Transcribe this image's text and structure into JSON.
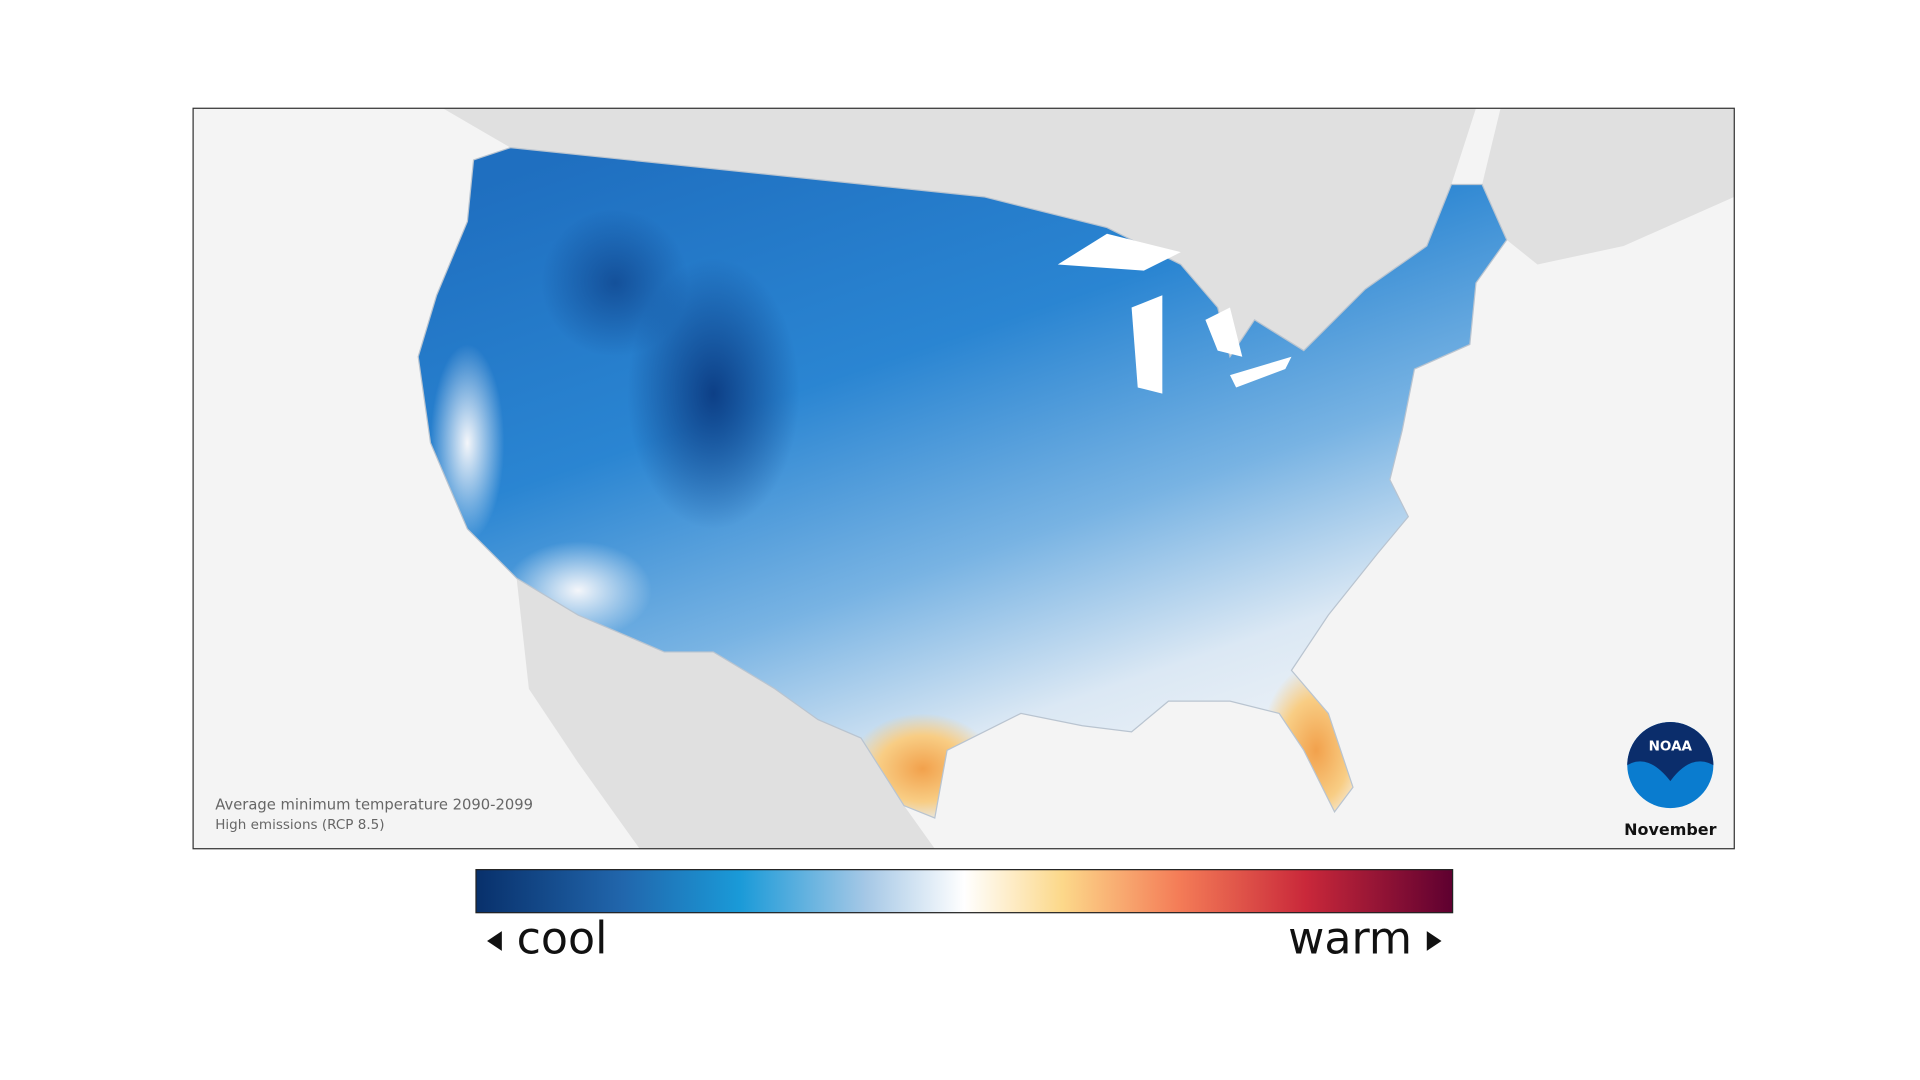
{
  "map": {
    "caption": [
      "Average minimum temperature 2090-2099",
      "High emissions (RCP 8.5)"
    ],
    "month": "November",
    "logo": "NOAA"
  },
  "legend": {
    "low": "cool",
    "high": "warm"
  }
}
